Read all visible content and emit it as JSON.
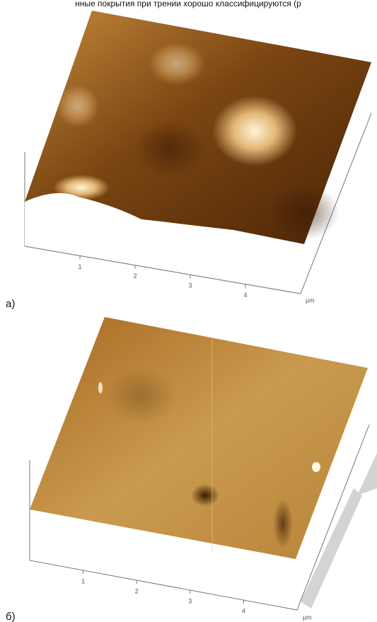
{
  "header": {
    "text": "нные покрытия при трении хорошо классифицируются (р"
  },
  "figures": [
    {
      "label": "а)",
      "axis_ticks": [
        1,
        2,
        3,
        4
      ],
      "unit": "μm"
    },
    {
      "label": "б)",
      "axis_ticks": [
        1,
        2,
        3,
        4
      ],
      "unit": "μm"
    }
  ]
}
